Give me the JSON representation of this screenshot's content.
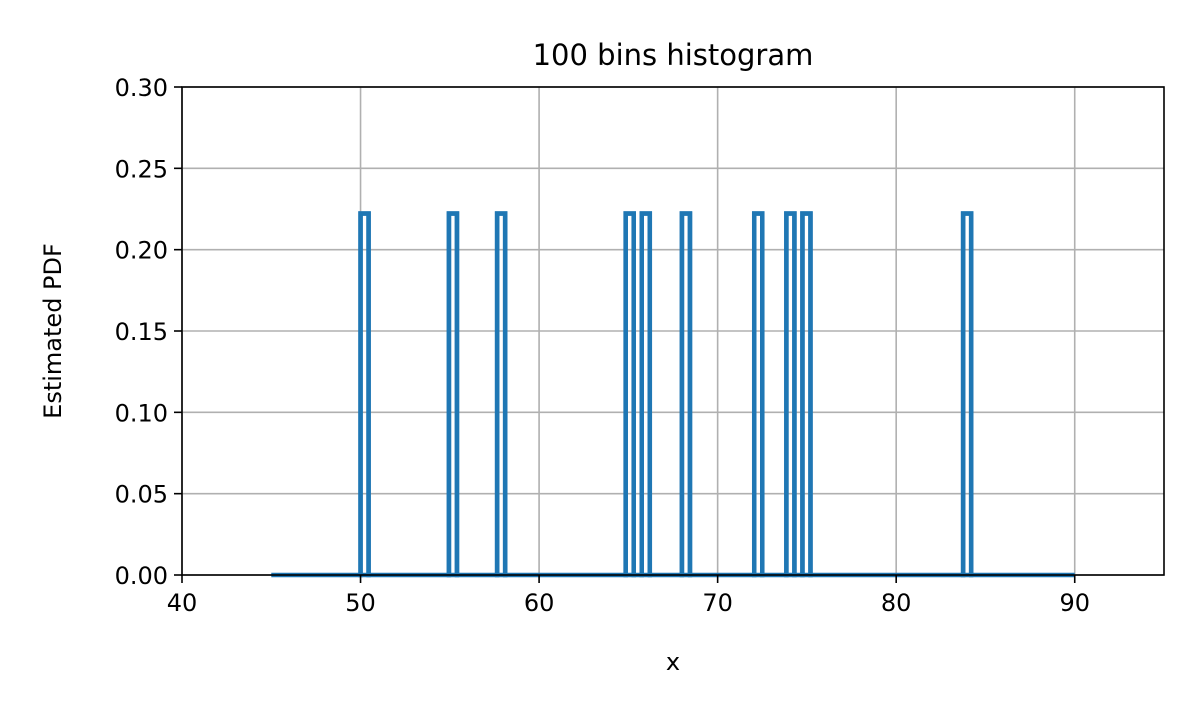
{
  "chart_data": {
    "type": "histogram",
    "title": "100 bins histogram",
    "xlabel": "x",
    "ylabel": "Estimated PDF",
    "xlim": [
      40,
      95
    ],
    "ylim": [
      0,
      0.3
    ],
    "xticks": [
      40,
      50,
      60,
      70,
      80,
      90
    ],
    "yticks": [
      0.0,
      0.05,
      0.1,
      0.15,
      0.2,
      0.25,
      0.3
    ],
    "ytick_labels": [
      "0.00",
      "0.05",
      "0.10",
      "0.15",
      "0.20",
      "0.25",
      "0.30"
    ],
    "grid": true,
    "histtype": "step",
    "color": "#1f77b4",
    "range": [
      45,
      90
    ],
    "bins": 100,
    "bar_value": 0.2222,
    "bar_bins": [
      [
        50.0,
        50.45
      ],
      [
        54.95,
        55.4
      ],
      [
        57.65,
        58.1
      ],
      [
        64.85,
        65.3
      ],
      [
        65.75,
        66.2
      ],
      [
        67.999,
        68.45
      ],
      [
        72.05,
        72.5
      ],
      [
        73.85,
        74.3
      ],
      [
        74.75,
        75.2
      ],
      [
        83.75,
        84.2
      ]
    ]
  }
}
